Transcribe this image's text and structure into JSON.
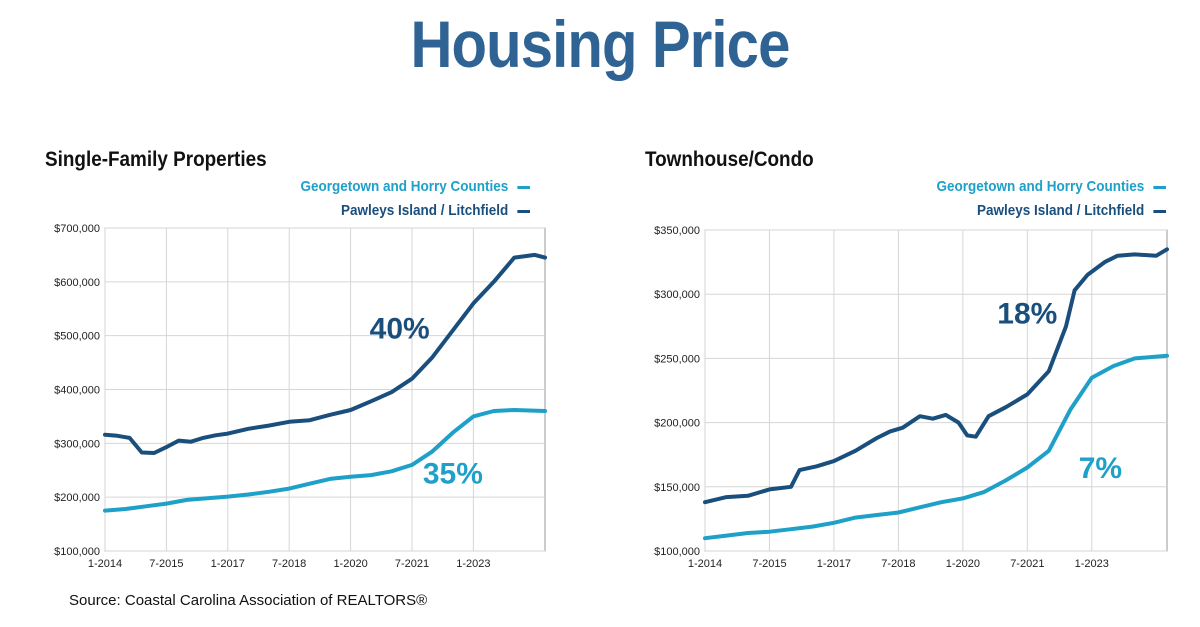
{
  "title": "Housing Price",
  "source": "Source:  Coastal Carolina Association of REALTORS®",
  "colors": {
    "title": "#2e6394",
    "dark": "#1a4e7c",
    "light": "#1ea0c9"
  },
  "chart_data": [
    {
      "type": "line",
      "title": "Single-Family Properties",
      "x_ticks": [
        "1-2014",
        "7-2015",
        "1-2017",
        "7-2018",
        "1-2020",
        "7-2021",
        "1-2023"
      ],
      "x_range": [
        2014.0,
        2024.75
      ],
      "ylim": [
        100000,
        700000
      ],
      "y_ticks": [
        "$100,000",
        "$200,000",
        "$300,000",
        "$400,000",
        "$500,000",
        "$600,000",
        "$700,000"
      ],
      "y_tick_values": [
        100000,
        200000,
        300000,
        400000,
        500000,
        600000,
        700000
      ],
      "grid": true,
      "legend": "top-right",
      "series": [
        {
          "name": "Georgetown and Horry Counties",
          "color": "#1ea0c9",
          "annotation": "35%",
          "annotation_at": [
            2022.5,
            225000
          ],
          "x": [
            2014.0,
            2014.5,
            2015.0,
            2015.5,
            2016.0,
            2016.5,
            2017.0,
            2017.5,
            2018.0,
            2018.5,
            2019.0,
            2019.5,
            2020.0,
            2020.5,
            2021.0,
            2021.5,
            2022.0,
            2022.5,
            2023.0,
            2023.5,
            2024.0,
            2024.75
          ],
          "values": [
            175000,
            178000,
            183000,
            188000,
            195000,
            198000,
            201000,
            205000,
            210000,
            216000,
            225000,
            234000,
            238000,
            241000,
            248000,
            260000,
            285000,
            320000,
            350000,
            360000,
            362000,
            360000
          ]
        },
        {
          "name": "Pawleys Island / Litchfield",
          "color": "#1a4e7c",
          "annotation": "40%",
          "annotation_at": [
            2021.2,
            495000
          ],
          "x": [
            2014.0,
            2014.3,
            2014.6,
            2014.9,
            2015.2,
            2015.5,
            2015.8,
            2016.1,
            2016.4,
            2016.7,
            2017.0,
            2017.5,
            2018.0,
            2018.5,
            2019.0,
            2019.5,
            2020.0,
            2020.5,
            2021.0,
            2021.5,
            2022.0,
            2022.5,
            2023.0,
            2023.5,
            2024.0,
            2024.5,
            2024.75
          ],
          "values": [
            316000,
            314000,
            310000,
            283000,
            282000,
            293000,
            305000,
            303000,
            310000,
            315000,
            318000,
            327000,
            333000,
            340000,
            343000,
            353000,
            362000,
            378000,
            395000,
            420000,
            460000,
            510000,
            560000,
            600000,
            645000,
            650000,
            645000
          ]
        }
      ]
    },
    {
      "type": "line",
      "title": "Townhouse/Condo",
      "x_ticks": [
        "1-2014",
        "7-2015",
        "1-2017",
        "7-2018",
        "1-2020",
        "7-2021",
        "1-2023"
      ],
      "x_range": [
        2014.0,
        2024.75
      ],
      "ylim": [
        100000,
        350000
      ],
      "y_ticks": [
        "$100,000",
        "$150,000",
        "$200,000",
        "$250,000",
        "$300,000",
        "$350,000"
      ],
      "y_tick_values": [
        100000,
        150000,
        200000,
        250000,
        300000,
        350000
      ],
      "grid": true,
      "legend": "top-right",
      "series": [
        {
          "name": "Georgetown and Horry Counties",
          "color": "#1ea0c9",
          "annotation": "7%",
          "annotation_at": [
            2023.2,
            157000
          ],
          "x": [
            2014.0,
            2014.5,
            2015.0,
            2015.5,
            2016.0,
            2016.5,
            2017.0,
            2017.5,
            2018.0,
            2018.5,
            2019.0,
            2019.5,
            2020.0,
            2020.5,
            2021.0,
            2021.5,
            2022.0,
            2022.5,
            2023.0,
            2023.5,
            2024.0,
            2024.75
          ],
          "values": [
            110000,
            112000,
            114000,
            115000,
            117000,
            119000,
            122000,
            126000,
            128000,
            130000,
            134000,
            138000,
            141000,
            146000,
            155000,
            165000,
            178000,
            210000,
            235000,
            244000,
            250000,
            252000
          ]
        },
        {
          "name": "Pawleys Island / Litchfield",
          "color": "#1a4e7c",
          "annotation": "18%",
          "annotation_at": [
            2021.5,
            277000
          ],
          "x": [
            2014.0,
            2014.5,
            2015.0,
            2015.5,
            2016.0,
            2016.2,
            2016.6,
            2017.0,
            2017.5,
            2018.0,
            2018.3,
            2018.6,
            2019.0,
            2019.3,
            2019.6,
            2019.9,
            2020.1,
            2020.3,
            2020.6,
            2021.0,
            2021.5,
            2022.0,
            2022.4,
            2022.6,
            2022.9,
            2023.3,
            2023.6,
            2024.0,
            2024.5,
            2024.75
          ],
          "values": [
            138000,
            142000,
            143000,
            148000,
            150000,
            163000,
            166000,
            170000,
            178000,
            188000,
            193000,
            196000,
            205000,
            203000,
            206000,
            200000,
            190000,
            189000,
            205000,
            212000,
            222000,
            240000,
            275000,
            303000,
            315000,
            325000,
            330000,
            331000,
            330000,
            335000
          ]
        }
      ]
    }
  ]
}
